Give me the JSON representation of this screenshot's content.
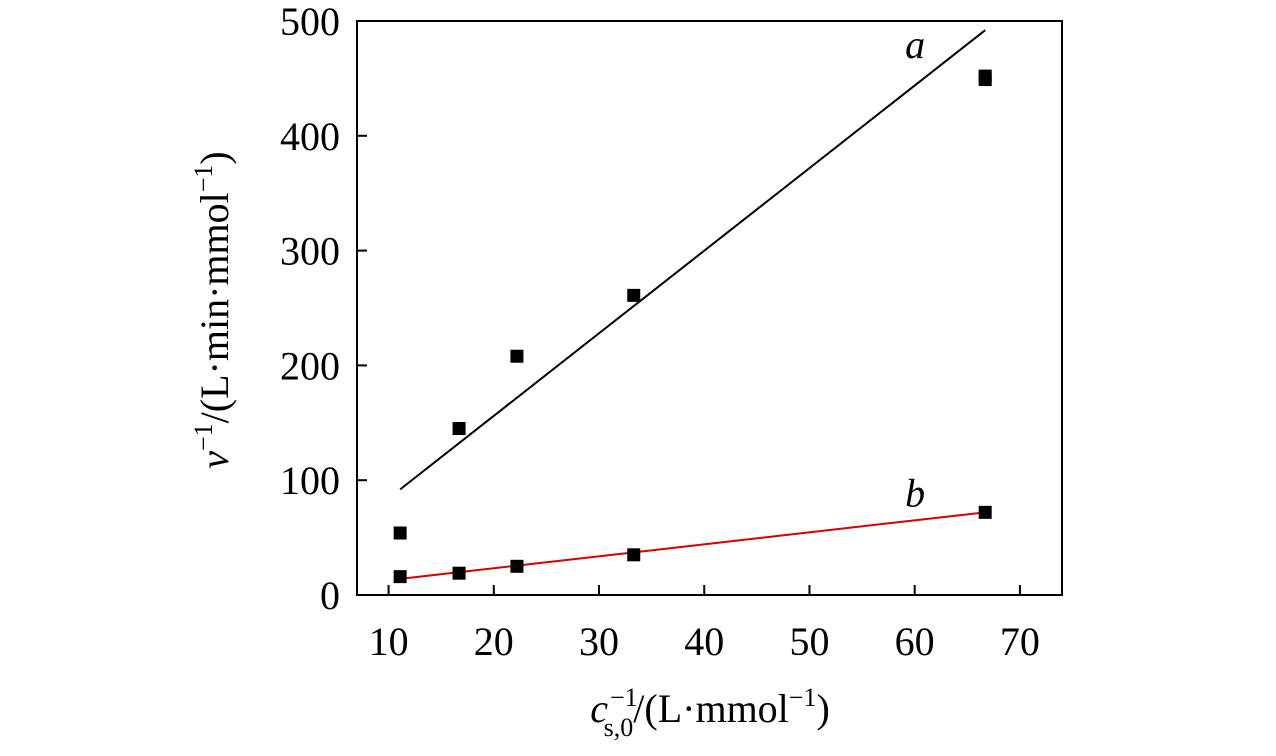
{
  "chart_data": {
    "type": "scatter",
    "title": "",
    "xlim": [
      7,
      74
    ],
    "ylim": [
      0,
      500
    ],
    "xticks": [
      10,
      20,
      30,
      40,
      50,
      60,
      70
    ],
    "yticks": [
      0,
      100,
      200,
      300,
      400,
      500
    ],
    "xlabel": {
      "symbol": "c",
      "subscript": "s,0",
      "superscript": "−1",
      "unit": "/(L·mmol",
      "unit_sup": "−1",
      "close": ")"
    },
    "ylabel": {
      "symbol": "v",
      "superscript": "−1",
      "unit": "/(L·min·mmol",
      "unit_sup": "−1",
      "close": ")"
    },
    "grid": false,
    "series": [
      {
        "name": "a",
        "line_color": "#000000",
        "marker_color": "#000000",
        "x": [
          11.1,
          16.7,
          22.2,
          33.3,
          66.7,
          66.7
        ],
        "y": [
          54,
          145,
          208,
          261,
          452,
          449
        ],
        "fit": {
          "x_start": 11.1,
          "y_start": 92,
          "x_end": 66.7,
          "y_end": 492
        }
      },
      {
        "name": "b",
        "line_color": "#d40000",
        "marker_color": "#000000",
        "x": [
          11.1,
          16.7,
          22.2,
          33.3,
          66.7
        ],
        "y": [
          16,
          19,
          25,
          35,
          72
        ],
        "fit": {
          "x_start": 11.1,
          "y_start": 14,
          "x_end": 66.7,
          "y_end": 72
        }
      }
    ]
  }
}
